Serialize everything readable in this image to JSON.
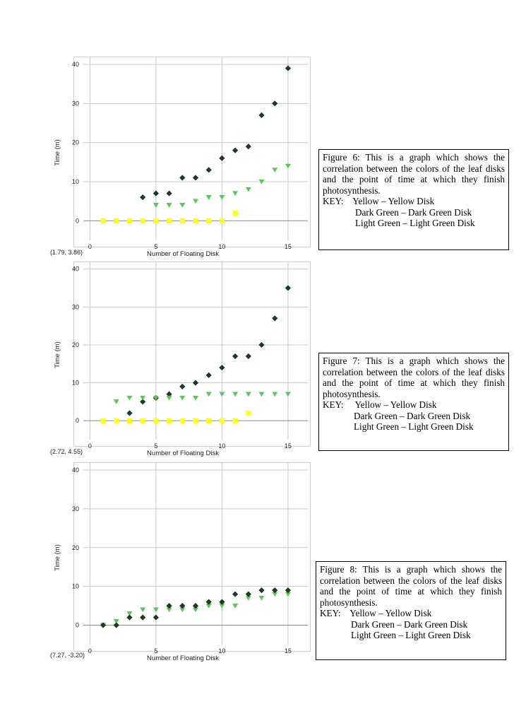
{
  "colors": {
    "dark_green": "#1f3d24",
    "light_green": "#5cc65c",
    "yellow": "#ffff1a",
    "grid": "#c8c8c8"
  },
  "chart_data": [
    {
      "type": "scatter",
      "title": "",
      "xlabel": "Number of Floating Disk",
      "ylabel": "Time (m)",
      "coordinate_readout": "(1.79, 3.86)",
      "xlim": [
        -0.5,
        16.5
      ],
      "ylim": [
        -5,
        42
      ],
      "xticks": [
        0,
        5,
        10,
        15
      ],
      "yticks": [
        0,
        10,
        20,
        30,
        40
      ],
      "grid": true,
      "series": [
        {
          "name": "Dark Green Disk",
          "marker": "diamond",
          "color": "#1f3d24",
          "x": [
            4,
            5,
            6,
            7,
            8,
            9,
            10,
            11,
            12,
            13,
            14,
            15
          ],
          "y": [
            6,
            7,
            7,
            11,
            11,
            13,
            16,
            18,
            19,
            27,
            30,
            39
          ]
        },
        {
          "name": "Light Green Disk",
          "marker": "triangle-down",
          "color": "#5cc65c",
          "x": [
            5,
            6,
            7,
            8,
            9,
            10,
            11,
            12,
            13,
            14,
            15
          ],
          "y": [
            4,
            4,
            4,
            5,
            6,
            6,
            7,
            8,
            10,
            13,
            14
          ]
        },
        {
          "name": "Yellow Disk",
          "marker": "square",
          "color": "#ffff1a",
          "x": [
            1,
            2,
            3,
            4,
            5,
            6,
            7,
            8,
            9,
            10,
            11
          ],
          "y": [
            0,
            0,
            0,
            0,
            0,
            0,
            0,
            0,
            0,
            0,
            2
          ]
        }
      ]
    },
    {
      "type": "scatter",
      "title": "",
      "xlabel": "Number of Floating Disk",
      "ylabel": "Time (m)",
      "coordinate_readout": "(2.72, 4.55)",
      "xlim": [
        -0.5,
        16.5
      ],
      "ylim": [
        -5,
        42
      ],
      "xticks": [
        0,
        5,
        10,
        15
      ],
      "yticks": [
        0,
        10,
        20,
        30,
        40
      ],
      "grid": true,
      "series": [
        {
          "name": "Dark Green Disk",
          "marker": "diamond",
          "color": "#1f3d24",
          "x": [
            3,
            4,
            5,
            6,
            7,
            8,
            9,
            10,
            11,
            12,
            13,
            14,
            15
          ],
          "y": [
            2,
            5,
            6,
            7,
            9,
            10,
            12,
            14,
            17,
            17,
            20,
            27,
            35
          ]
        },
        {
          "name": "Light Green Disk",
          "marker": "triangle-down",
          "color": "#5cc65c",
          "x": [
            2,
            3,
            4,
            5,
            6,
            7,
            8,
            9,
            10,
            11,
            12,
            13,
            14,
            15
          ],
          "y": [
            5,
            6,
            6,
            6,
            6,
            6,
            6,
            7,
            7,
            7,
            7,
            7,
            7,
            7
          ]
        },
        {
          "name": "Yellow Disk",
          "marker": "square",
          "color": "#ffff1a",
          "x": [
            1,
            2,
            3,
            4,
            5,
            6,
            7,
            8,
            9,
            10,
            11,
            12
          ],
          "y": [
            0,
            0,
            0,
            0,
            0,
            0,
            0,
            0,
            0,
            0,
            0,
            2
          ]
        }
      ]
    },
    {
      "type": "scatter",
      "title": "",
      "xlabel": "Number of Floating Disk",
      "ylabel": "Time (m)",
      "coordinate_readout": "(7.27, -3.20)",
      "xlim": [
        -0.5,
        16.5
      ],
      "ylim": [
        -5,
        42
      ],
      "xticks": [
        0,
        5,
        10,
        15
      ],
      "yticks": [
        0,
        10,
        20,
        30,
        40
      ],
      "grid": true,
      "series": [
        {
          "name": "Light Green Disk",
          "marker": "triangle-down",
          "color": "#5cc65c",
          "x": [
            1,
            2,
            3,
            4,
            5,
            6,
            7,
            8,
            9,
            10,
            11,
            12,
            13,
            14,
            15
          ],
          "y": [
            0,
            1,
            3,
            4,
            4,
            4,
            4,
            4,
            5,
            5,
            5,
            7,
            7,
            8,
            8
          ]
        },
        {
          "name": "Dark Green Disk",
          "marker": "diamond",
          "color": "#1f3d24",
          "x": [
            1,
            2,
            3,
            4,
            5,
            6,
            7,
            8,
            9,
            10,
            11,
            12,
            13,
            14,
            15
          ],
          "y": [
            0,
            0,
            2,
            2,
            2,
            5,
            5,
            5,
            6,
            6,
            8,
            8,
            9,
            9,
            9
          ]
        }
      ]
    }
  ],
  "captions": [
    {
      "description": "Figure 6: This is a graph which shows the correlation between the colors of the leaf disks and the point of time at which they finish photosynthesis.",
      "key_label": "KEY:",
      "key_items": [
        "Yellow – Yellow Disk",
        "Dark Green – Dark Green Disk",
        "Light Green – Light Green Disk"
      ]
    },
    {
      "description": "Figure 7: This is a graph which shows the correlation between the colors of the leaf disks and the point of time at which they finish photosynthesis.",
      "key_label": "KEY:",
      "key_items": [
        "Yellow – Yellow Disk",
        "Dark Green – Dark Green Disk",
        "Light Green – Light Green Disk"
      ]
    },
    {
      "description": "Figure 8: This is a graph which shows the correlation between the colors of the leaf disks and the point of time at which they finish photosynthesis.",
      "key_label": "KEY:",
      "key_items": [
        "Yellow – Yellow Disk",
        "Dark Green – Dark Green Disk",
        "Light Green – Light Green Disk"
      ]
    }
  ]
}
